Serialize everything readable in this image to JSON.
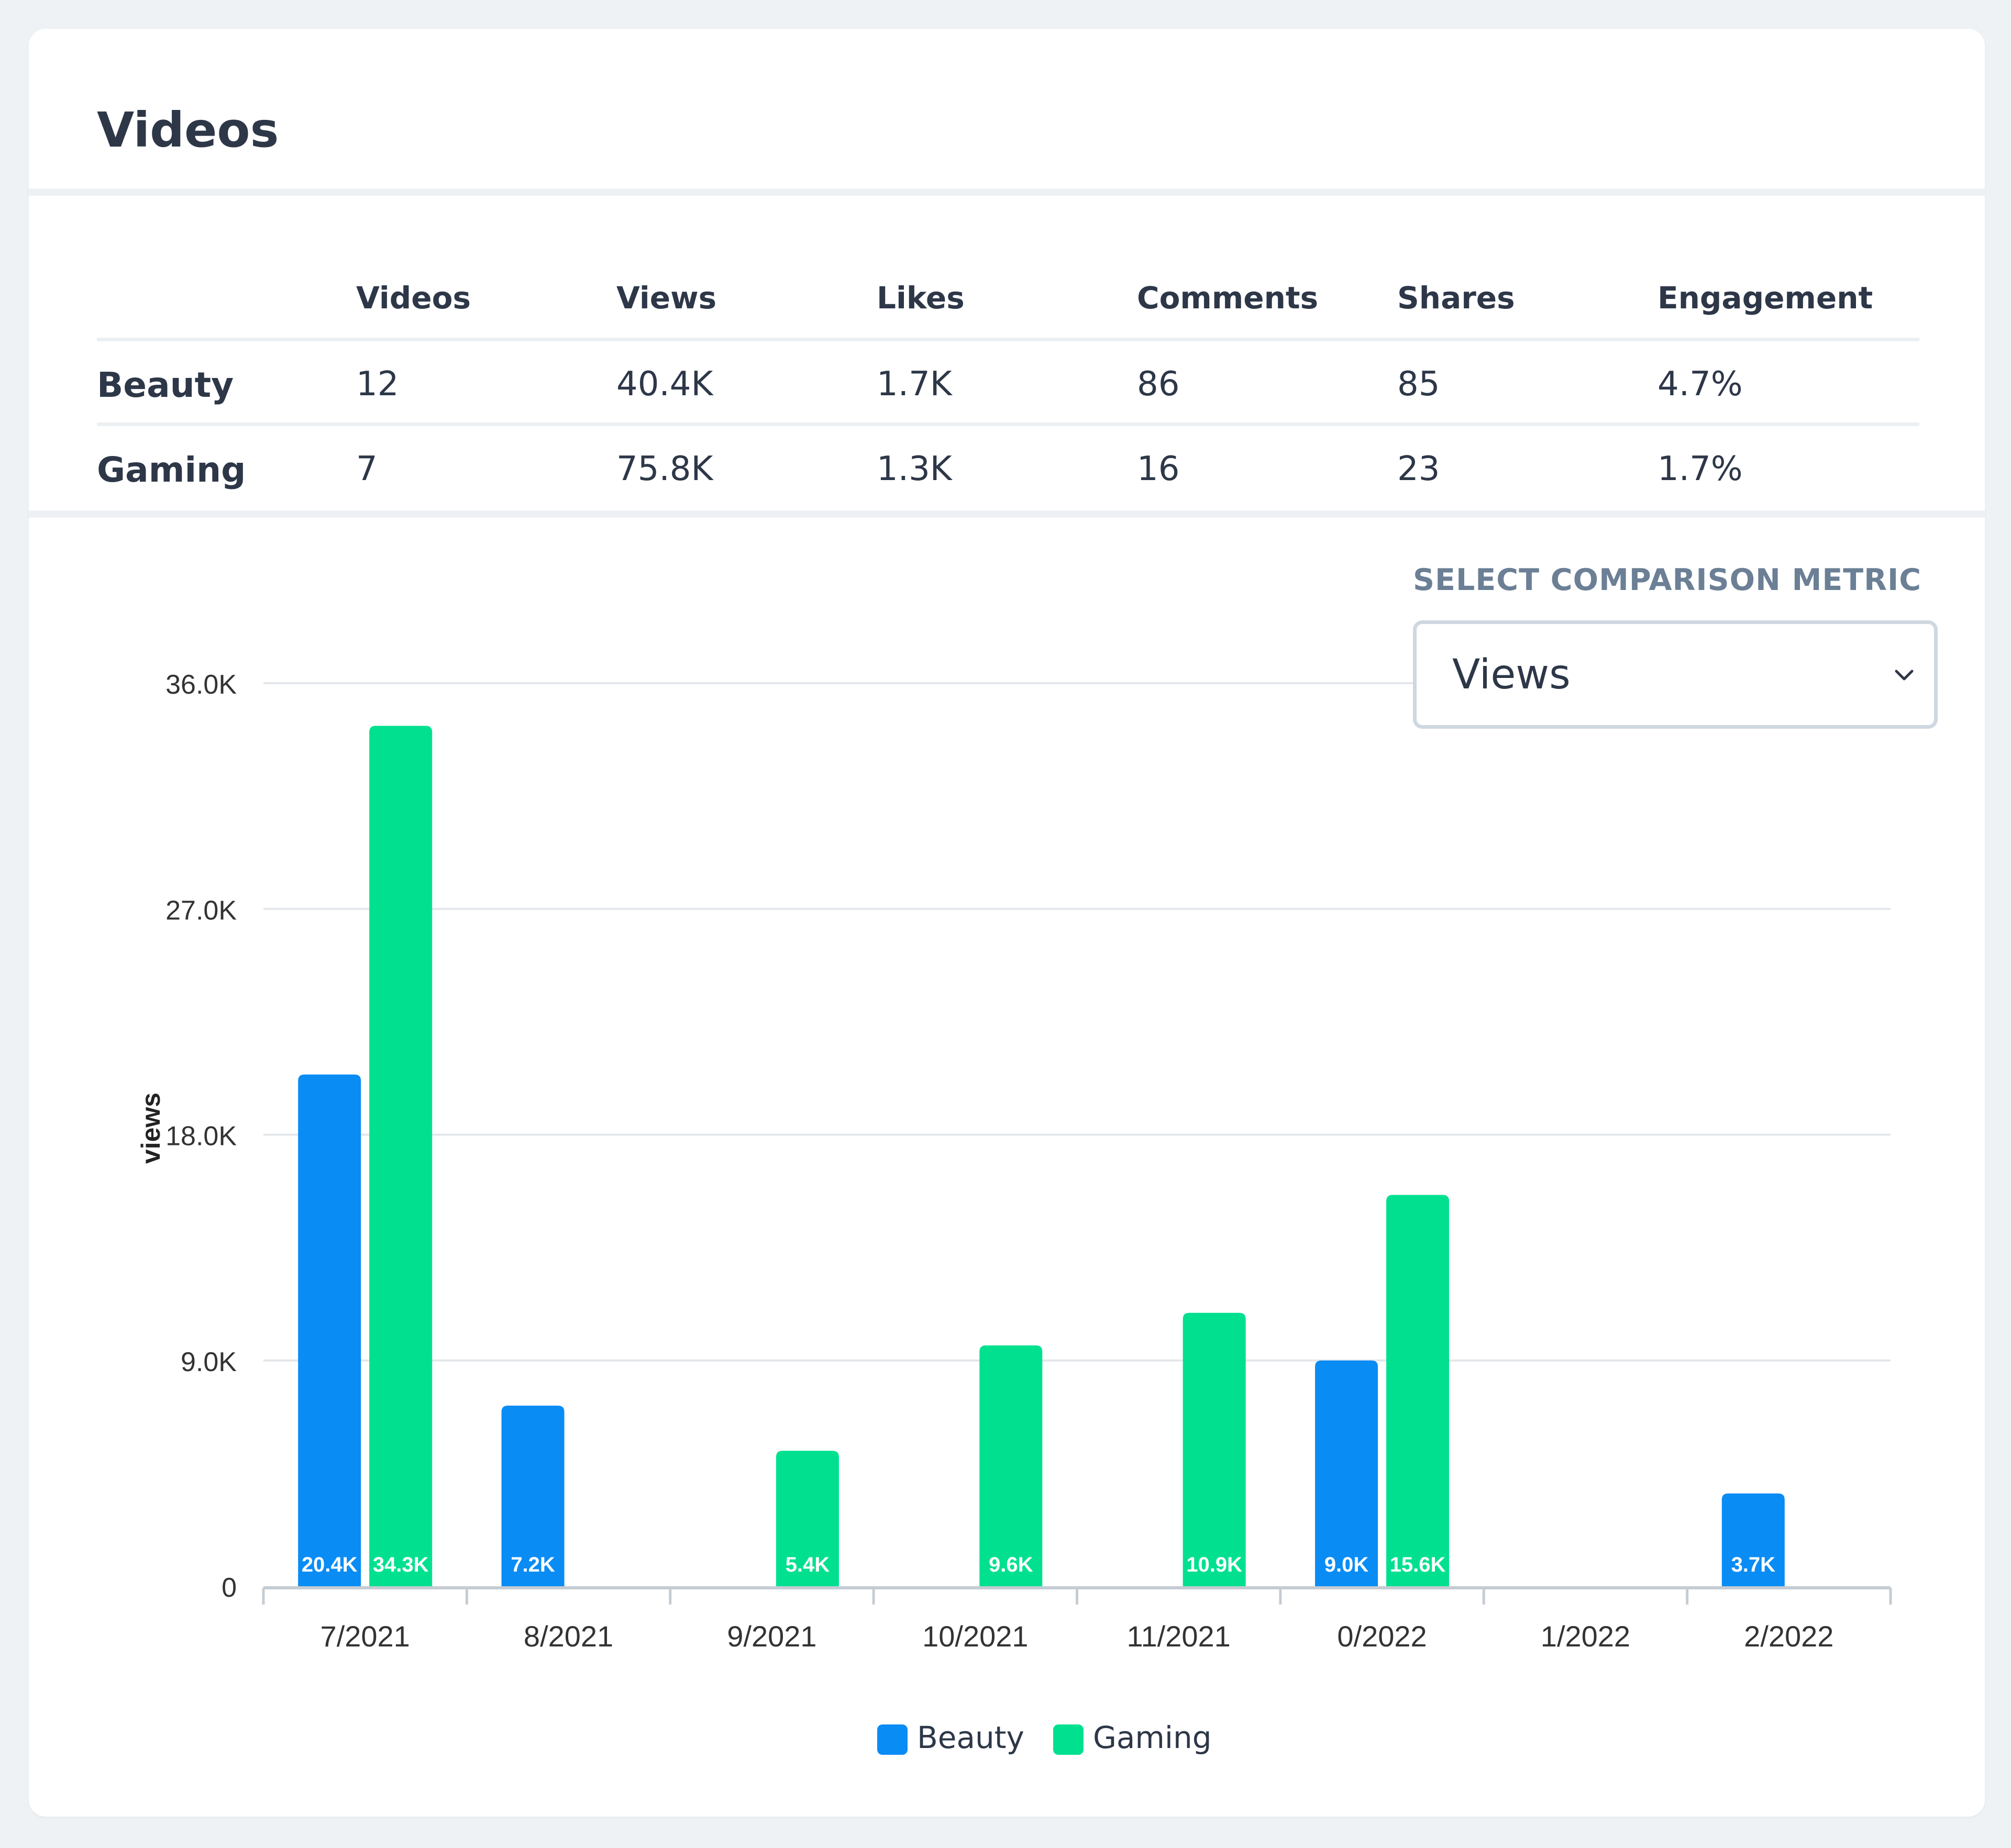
{
  "page": {
    "title": "Videos"
  },
  "stats": {
    "columns": [
      "Videos",
      "Views",
      "Likes",
      "Comments",
      "Shares",
      "Engagement"
    ],
    "rows": [
      {
        "label": "Beauty",
        "values": [
          "12",
          "40.4K",
          "1.7K",
          "86",
          "85",
          "4.7%"
        ]
      },
      {
        "label": "Gaming",
        "values": [
          "7",
          "75.8K",
          "1.3K",
          "16",
          "23",
          "1.7%"
        ]
      }
    ]
  },
  "comparison": {
    "label": "SELECT COMPARISON METRIC",
    "selected": "Views"
  },
  "colors": {
    "beauty": "#0a8cf5",
    "gaming": "#00e08f",
    "grid": "#e3e7eb",
    "axis": "#c5ccd3"
  },
  "chart_data": {
    "type": "bar",
    "ylabel": "views",
    "ylim": [
      0,
      36000
    ],
    "y_ticks": [
      "0",
      "9.0K",
      "18.0K",
      "27.0K",
      "36.0K"
    ],
    "y_tick_values": [
      0,
      9000,
      18000,
      27000,
      36000
    ],
    "categories": [
      "7/2021",
      "8/2021",
      "9/2021",
      "10/2021",
      "11/2021",
      "0/2022",
      "1/2022",
      "2/2022"
    ],
    "series": [
      {
        "name": "Beauty",
        "values": [
          20400,
          7200,
          null,
          null,
          null,
          9000,
          null,
          3700
        ],
        "labels": [
          "20.4K",
          "7.2K",
          "",
          "",
          "",
          "9.0K",
          "",
          "3.7K"
        ]
      },
      {
        "name": "Gaming",
        "values": [
          34300,
          null,
          5400,
          9600,
          10900,
          15600,
          null,
          null
        ],
        "labels": [
          "34.3K",
          "",
          "5.4K",
          "9.6K",
          "10.9K",
          "15.6K",
          "",
          ""
        ]
      }
    ],
    "legend": "bottom"
  }
}
